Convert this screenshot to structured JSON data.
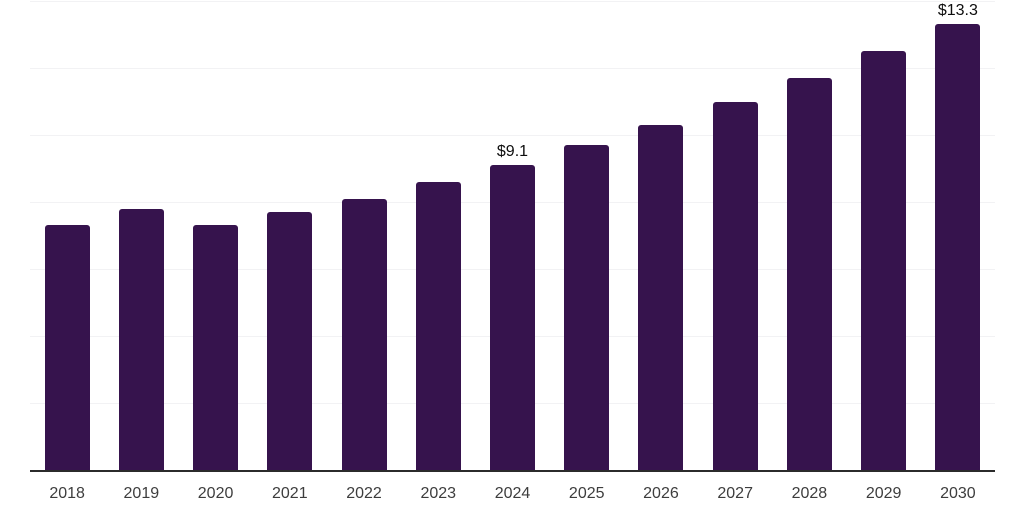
{
  "chart_data": {
    "type": "bar",
    "title": "",
    "xlabel": "",
    "ylabel": "",
    "categories": [
      "2018",
      "2019",
      "2020",
      "2021",
      "2022",
      "2023",
      "2024",
      "2025",
      "2026",
      "2027",
      "2028",
      "2029",
      "2030"
    ],
    "values": [
      7.3,
      7.8,
      7.3,
      7.7,
      8.1,
      8.6,
      9.1,
      9.7,
      10.3,
      11.0,
      11.7,
      12.5,
      13.3
    ],
    "value_labels": {
      "2024": "$9.1",
      "2030": "$13.3"
    },
    "ylim": [
      0,
      14
    ],
    "grid": {
      "visible": true,
      "interval": 2
    },
    "legend_position": "none",
    "colors": {
      "bar": "#36134d",
      "gridline": "#f2f2f4",
      "axis_line": "#2b2b2b",
      "tick_label": "#3d3d3d",
      "value_label": "#0d0d0d",
      "background": "#ffffff"
    }
  }
}
